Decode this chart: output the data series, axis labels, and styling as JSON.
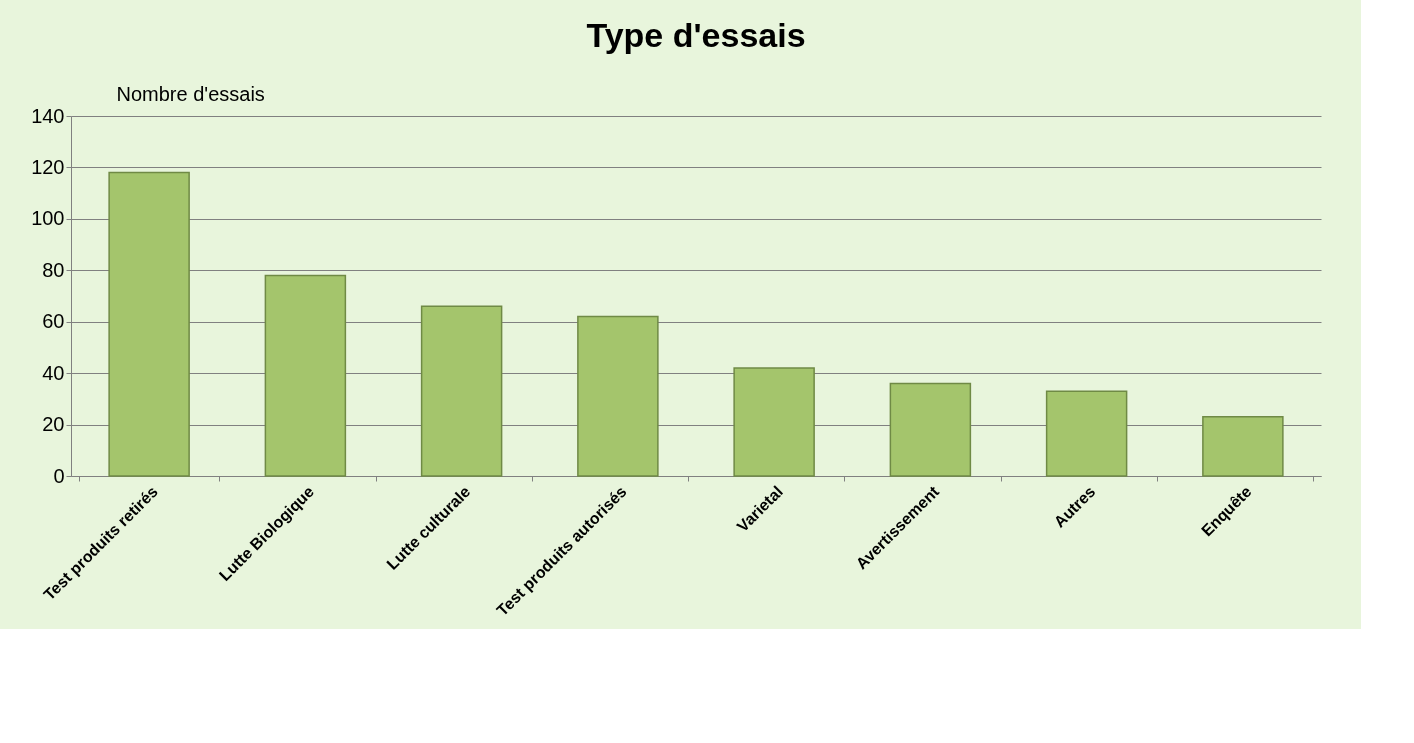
{
  "chart_data": {
    "type": "bar",
    "title": "Type d'essais",
    "ylabel": "Nombre d'essais",
    "categories": [
      "Test produits retirés",
      "Lutte Biologique",
      "Lutte culturale",
      "Test produits autorisés",
      "Varietal",
      "Avertissement",
      "Autres",
      "Enquête"
    ],
    "values": [
      118,
      78,
      66,
      62,
      42,
      36,
      33,
      23
    ],
    "color": "#a4c56c",
    "ylim": [
      0,
      140
    ],
    "yticks": [
      0,
      20,
      40,
      60,
      80,
      100,
      120,
      140
    ],
    "grid": "y"
  }
}
